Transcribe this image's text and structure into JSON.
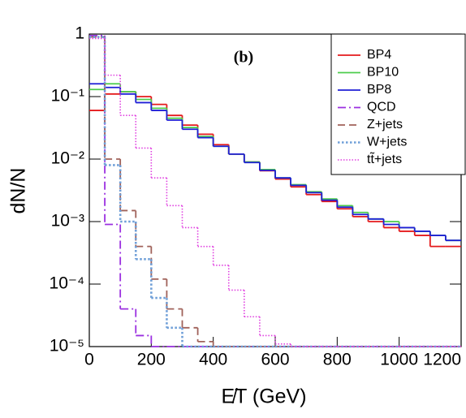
{
  "chart_data": {
    "type": "histogram",
    "annotation": "(b)",
    "x_label": "E̸T (GeV)",
    "y_label": "dN/N",
    "log_y": true,
    "bins": [
      0,
      50,
      100,
      150,
      200,
      250,
      300,
      350,
      400,
      450,
      500,
      550,
      600,
      650,
      700,
      750,
      800,
      850,
      900,
      950,
      1000,
      1050,
      1100,
      1150,
      1200
    ],
    "xlim": [
      0,
      1200
    ],
    "xticks": [
      0,
      200,
      400,
      600,
      800,
      1000,
      1200
    ],
    "ylim": [
      1e-05,
      1
    ],
    "yticks": [
      {
        "value": 1e-05,
        "label": "10⁻⁵"
      },
      {
        "value": 0.0001,
        "label": "10⁻⁴"
      },
      {
        "value": 0.001,
        "label": "10⁻³"
      },
      {
        "value": 0.01,
        "label": "10⁻²"
      },
      {
        "value": 0.1,
        "label": "10⁻¹"
      },
      1
    ],
    "legend": "top-right",
    "series": [
      {
        "name": "BP4",
        "color": "#e41a1c",
        "style": "solid",
        "values": [
          0.06,
          0.11,
          0.12,
          0.1,
          0.075,
          0.05,
          0.035,
          0.025,
          0.017,
          0.012,
          0.009,
          0.0065,
          0.0048,
          0.0036,
          0.0027,
          0.0021,
          0.0016,
          0.0012,
          0.001,
          0.0008,
          0.0007,
          0.0006,
          0.0004,
          0.0004
        ]
      },
      {
        "name": "BP10",
        "color": "#4ccc4c",
        "style": "solid",
        "values": [
          0.13,
          0.16,
          0.12,
          0.09,
          0.065,
          0.045,
          0.032,
          0.023,
          0.016,
          0.012,
          0.009,
          0.0068,
          0.005,
          0.0039,
          0.003,
          0.0023,
          0.0018,
          0.0014,
          0.0011,
          0.001,
          0.0008,
          0.0007,
          0.0006,
          0.0005
        ]
      },
      {
        "name": "BP8",
        "color": "#1f1fd6",
        "style": "solid",
        "values": [
          0.16,
          0.14,
          0.11,
          0.08,
          0.06,
          0.042,
          0.03,
          0.022,
          0.016,
          0.012,
          0.0088,
          0.0066,
          0.005,
          0.0038,
          0.0029,
          0.0022,
          0.0017,
          0.0013,
          0.0011,
          0.0009,
          0.0008,
          0.0007,
          0.0006,
          0.0005
        ]
      },
      {
        "name": "QCD",
        "color": "#9b30e0",
        "style": "dashdot",
        "values": [
          0.95,
          0.0009,
          4e-05,
          1.5e-05,
          0,
          0,
          0,
          0,
          0,
          0,
          0,
          0,
          0,
          0,
          0,
          0,
          0,
          0,
          0,
          0,
          0,
          0,
          0,
          0
        ]
      },
      {
        "name": "Z+jets",
        "color": "#a0625a",
        "style": "dashed",
        "values": [
          0.9,
          0.01,
          0.0015,
          0.0004,
          0.00012,
          4e-05,
          2e-05,
          1.2e-05,
          0,
          0,
          0,
          0,
          0,
          0,
          0,
          0,
          0,
          0,
          0,
          0,
          0,
          0,
          0,
          0
        ]
      },
      {
        "name": "W+jets",
        "color": "#6f9fd8",
        "style": "dotted",
        "values": [
          0.9,
          0.008,
          0.001,
          0.00025,
          6e-05,
          2e-05,
          0,
          0,
          0,
          0,
          0,
          0,
          0,
          0,
          0,
          0,
          0,
          0,
          0,
          0,
          0,
          0,
          0,
          0
        ]
      },
      {
        "name": "tt̃+jets",
        "color": "#e040e0",
        "style": "finedot",
        "values": [
          0.85,
          0.22,
          0.05,
          0.015,
          0.005,
          0.0018,
          0.0008,
          0.0004,
          0.0002,
          8e-05,
          3e-05,
          1.5e-05,
          1.1e-05,
          0,
          0,
          0,
          0,
          0,
          0,
          0,
          0,
          0,
          0,
          0
        ]
      }
    ]
  }
}
